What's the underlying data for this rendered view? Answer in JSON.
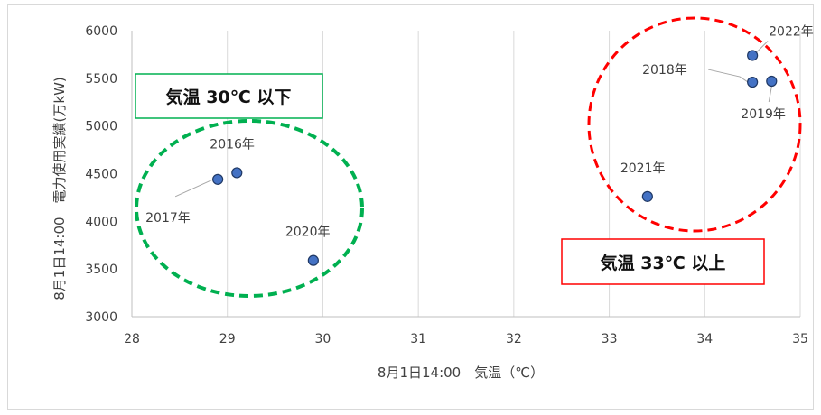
{
  "chart_data": {
    "type": "scatter",
    "xlabel": "8月1日14:00　気温（℃）",
    "ylabel": "8月1日14:00　電力使用実績(万kW)",
    "xlim": [
      28,
      35
    ],
    "ylim": [
      3000,
      6000
    ],
    "x_ticks": [
      "28",
      "29",
      "30",
      "31",
      "32",
      "33",
      "34",
      "35"
    ],
    "y_ticks": [
      "3000",
      "3500",
      "4000",
      "4500",
      "5000",
      "5500",
      "6000"
    ],
    "grid": "vertical",
    "points": [
      {
        "label": "2016年",
        "x": 29.1,
        "y": 4510
      },
      {
        "label": "2017年",
        "x": 28.9,
        "y": 4440
      },
      {
        "label": "2018年",
        "x": 34.5,
        "y": 5460
      },
      {
        "label": "2019年",
        "x": 34.7,
        "y": 5470
      },
      {
        "label": "2020年",
        "x": 29.9,
        "y": 3590
      },
      {
        "label": "2021年",
        "x": 33.4,
        "y": 4260
      },
      {
        "label": "2022年",
        "x": 34.5,
        "y": 5740
      }
    ],
    "annotations": [
      {
        "text": "気温 30℃ 以下",
        "color": "#00b050"
      },
      {
        "text": "気温 33℃ 以上",
        "color": "#ff0000"
      }
    ],
    "colors": {
      "marker_fill": "#4472c4",
      "marker_stroke": "#1f3864",
      "green": "#00b050",
      "red": "#ff0000",
      "gridline": "#d9d9d9"
    }
  }
}
